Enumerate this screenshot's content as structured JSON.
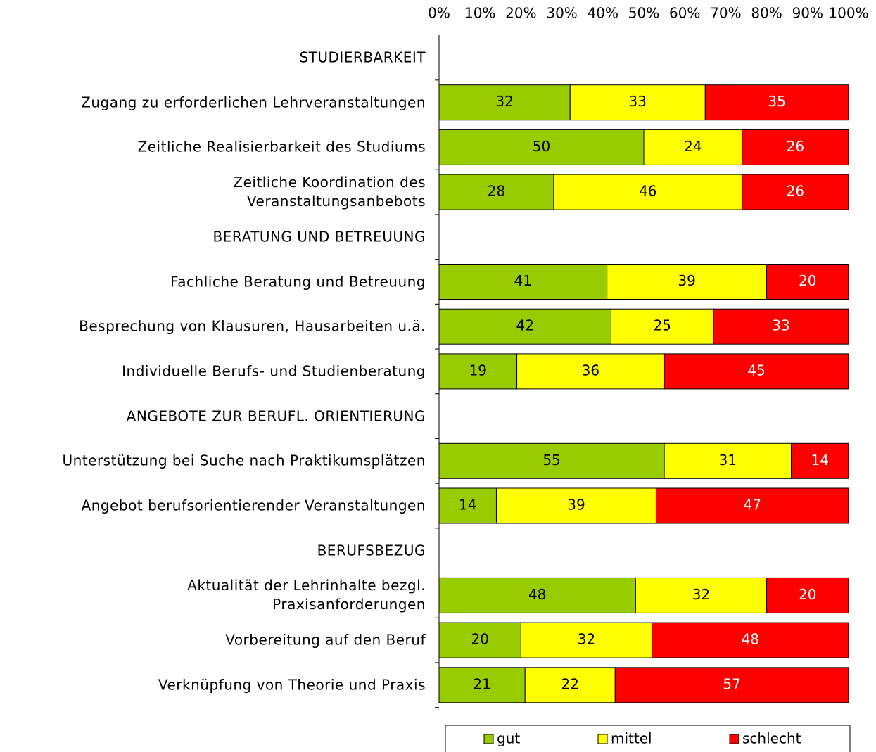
{
  "chart_data": {
    "type": "stacked_bar_horizontal",
    "categories": [
      "STUDIERBARKEIT",
      "Zugang zu erforderlichen Lehrveranstaltungen",
      "Zeitliche Realisierbarkeit des Studiums",
      "Zeitliche Koordination des\nVeranstaltungsanbebots",
      "BERATUNG UND BETREUUNG",
      "Fachliche Beratung und Betreuung",
      "Besprechung von Klausuren, Hausarbeiten u.ä.",
      "Individuelle Berufs- und Studienberatung",
      "ANGEBOTE ZUR BERUFL. ORIENTIERUNG",
      "Unterstützung bei Suche nach Praktikumsplätzen",
      "Angebot berufsorientierender Veranstaltungen",
      "BERUFSBEZUG",
      "Aktualität der Lehrinhalte bezgl.\nPraxisanforderungen",
      "Vorbereitung auf den Beruf",
      "Verknüpfung von Theorie und Praxis"
    ],
    "series": [
      {
        "name": "gut",
        "color": "#99cc00",
        "values": [
          null,
          32,
          50,
          28,
          null,
          41,
          42,
          19,
          null,
          55,
          14,
          null,
          48,
          20,
          21
        ]
      },
      {
        "name": "mittel",
        "color": "#ffff00",
        "values": [
          null,
          33,
          24,
          46,
          null,
          39,
          25,
          36,
          null,
          31,
          39,
          null,
          32,
          32,
          22
        ]
      },
      {
        "name": "schlecht",
        "color": "#ff0000",
        "values": [
          null,
          35,
          26,
          26,
          null,
          20,
          33,
          45,
          null,
          14,
          47,
          null,
          20,
          48,
          57
        ]
      }
    ],
    "xlim": [
      0,
      100
    ],
    "xticks": [
      {
        "value": 0,
        "label": "0%"
      },
      {
        "value": 10,
        "label": "10%"
      },
      {
        "value": 20,
        "label": "20%"
      },
      {
        "value": 30,
        "label": "30%"
      },
      {
        "value": 40,
        "label": "40%"
      },
      {
        "value": 50,
        "label": "50%"
      },
      {
        "value": 60,
        "label": "60%"
      },
      {
        "value": 70,
        "label": "70%"
      },
      {
        "value": 80,
        "label": "80%"
      },
      {
        "value": 90,
        "label": "90%"
      },
      {
        "value": 100,
        "label": "100%"
      }
    ],
    "grid": false,
    "legend": "bottom"
  }
}
